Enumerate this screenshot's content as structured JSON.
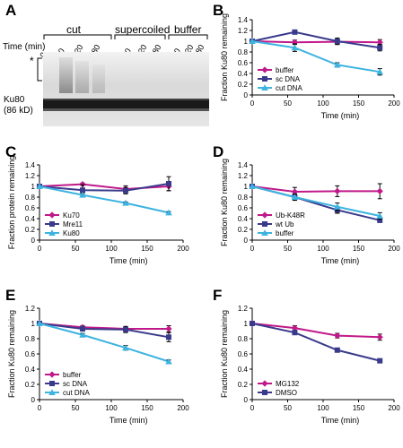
{
  "panels": {
    "A": {
      "letter": "A",
      "groups": [
        "cut",
        "supercoiled",
        "buffer"
      ],
      "time_label": "Time (min)",
      "lanes": [
        "0",
        "60",
        "120",
        "180",
        "0",
        "60",
        "120",
        "180",
        "0",
        "60",
        "120",
        "180"
      ],
      "star": "*",
      "ku80_label": "Ku80",
      "kd_label": "(86 kD)"
    }
  },
  "chart_data": [
    {
      "panel": "B",
      "type": "line",
      "xlabel": "Time (min)",
      "ylabel": "Fraction Ku80 remaining",
      "xlim": [
        0,
        200
      ],
      "ylim": [
        0,
        1.4
      ],
      "xticks": [
        0,
        50,
        100,
        150,
        200
      ],
      "yticks": [
        0,
        0.2,
        0.4,
        0.6,
        0.8,
        1,
        1.2,
        1.4
      ],
      "ytick_labels": [
        "0",
        "0.2",
        "0.4",
        "0.6",
        "0.8",
        "1",
        "1.2",
        "1.4"
      ],
      "legend_position": "bottom-left",
      "x": [
        0,
        60,
        120,
        180
      ],
      "series": [
        {
          "name": "buffer",
          "color": "#c0198a",
          "marker": "diamond",
          "values": [
            1.0,
            0.98,
            0.99,
            0.98
          ],
          "err": [
            0,
            0.04,
            0.05,
            0.05
          ]
        },
        {
          "name": "sc DNA",
          "color": "#3a3a8c",
          "marker": "square",
          "values": [
            1.0,
            1.17,
            1.0,
            0.88
          ],
          "err": [
            0,
            0.03,
            0.06,
            0.06
          ]
        },
        {
          "name": "cut DNA",
          "color": "#3db3e0",
          "marker": "triangle",
          "values": [
            1.0,
            0.88,
            0.56,
            0.43
          ],
          "err": [
            0,
            0.07,
            0.04,
            0.06
          ]
        }
      ]
    },
    {
      "panel": "C",
      "type": "line",
      "xlabel": "Time (min)",
      "ylabel": "Fraction protein remaining",
      "xlim": [
        0,
        200
      ],
      "ylim": [
        0,
        1.4
      ],
      "xticks": [
        0,
        50,
        100,
        150,
        200
      ],
      "yticks": [
        0,
        0.2,
        0.4,
        0.6,
        0.8,
        1,
        1.2,
        1.4
      ],
      "ytick_labels": [
        "0",
        "0.2",
        "0.4",
        "0.6",
        "0.8",
        "1",
        "1.2",
        "1.4"
      ],
      "legend_position": "bottom-left",
      "x": [
        0,
        60,
        120,
        180
      ],
      "series": [
        {
          "name": "Ku70",
          "color": "#c0198a",
          "marker": "diamond",
          "values": [
            1.0,
            1.04,
            0.95,
            1.0
          ],
          "err": [
            0,
            0.02,
            0.06,
            0.08
          ]
        },
        {
          "name": "Mre11",
          "color": "#3a3a8c",
          "marker": "square",
          "values": [
            1.0,
            0.93,
            0.92,
            1.05
          ],
          "err": [
            0,
            0.1,
            0.06,
            0.13
          ]
        },
        {
          "name": "Ku80",
          "color": "#3db3e0",
          "marker": "triangle",
          "values": [
            1.0,
            0.84,
            0.69,
            0.51
          ],
          "err": [
            0,
            0.03,
            0.02,
            0.02
          ]
        }
      ]
    },
    {
      "panel": "D",
      "type": "line",
      "xlabel": "Time (min)",
      "ylabel": "Fraction Ku80 remaining",
      "xlim": [
        0,
        200
      ],
      "ylim": [
        0,
        1.4
      ],
      "xticks": [
        0,
        50,
        100,
        150,
        200
      ],
      "yticks": [
        0,
        0.2,
        0.4,
        0.6,
        0.8,
        1,
        1.2,
        1.4
      ],
      "ytick_labels": [
        "0",
        "0.2",
        "0.4",
        "0.6",
        "0.8",
        "1",
        "1.2",
        "1.4"
      ],
      "legend_position": "bottom-left",
      "x": [
        0,
        60,
        120,
        180
      ],
      "series": [
        {
          "name": "Ub-K48R",
          "color": "#c0198a",
          "marker": "diamond",
          "values": [
            1.0,
            0.9,
            0.91,
            0.91
          ],
          "err": [
            0,
            0.08,
            0.1,
            0.14
          ]
        },
        {
          "name": "wt Ub",
          "color": "#3a3a8c",
          "marker": "square",
          "values": [
            1.0,
            0.8,
            0.56,
            0.37
          ],
          "err": [
            0,
            0.05,
            0.06,
            0.04
          ]
        },
        {
          "name": "buffer",
          "color": "#3db3e0",
          "marker": "triangle",
          "values": [
            1.0,
            0.8,
            0.62,
            0.45
          ],
          "err": [
            0,
            0.06,
            0.07,
            0.06
          ]
        }
      ]
    },
    {
      "panel": "E",
      "type": "line",
      "xlabel": "Time (min)",
      "ylabel": "Fraction Ku80 remaining",
      "xlim": [
        0,
        200
      ],
      "ylim": [
        0,
        1.2
      ],
      "xticks": [
        0,
        50,
        100,
        150,
        200
      ],
      "yticks": [
        0,
        0.2,
        0.4,
        0.6,
        0.8,
        1,
        1.2
      ],
      "ytick_labels": [
        "0",
        "0.2",
        "0.4",
        "0.6",
        "0.8",
        "1",
        "1.2"
      ],
      "legend_position": "bottom-left",
      "x": [
        0,
        60,
        120,
        180
      ],
      "series": [
        {
          "name": "buffer",
          "color": "#c0198a",
          "marker": "diamond",
          "values": [
            1.0,
            0.95,
            0.93,
            0.93
          ],
          "err": [
            0,
            0.02,
            0.03,
            0.04
          ]
        },
        {
          "name": "sc DNA",
          "color": "#3a3a8c",
          "marker": "square",
          "values": [
            1.0,
            0.93,
            0.92,
            0.82
          ],
          "err": [
            0,
            0.03,
            0.04,
            0.06
          ]
        },
        {
          "name": "cut DNA",
          "color": "#3db3e0",
          "marker": "triangle",
          "values": [
            1.0,
            0.85,
            0.68,
            0.5
          ],
          "err": [
            0,
            0.02,
            0.03,
            0.02
          ]
        }
      ]
    },
    {
      "panel": "F",
      "type": "line",
      "xlabel": "Time (min)",
      "ylabel": "Fraction Ku80 remaining",
      "xlim": [
        0,
        200
      ],
      "ylim": [
        0,
        1.2
      ],
      "xticks": [
        0,
        50,
        100,
        150,
        200
      ],
      "yticks": [
        0,
        0.2,
        0.4,
        0.6,
        0.8,
        1,
        1.2
      ],
      "ytick_labels": [
        "0",
        "0.2",
        "0.4",
        "0.6",
        "0.8",
        "1",
        "1.2"
      ],
      "legend_position": "bottom-left",
      "x": [
        0,
        60,
        120,
        180
      ],
      "series": [
        {
          "name": "MG132",
          "color": "#c0198a",
          "marker": "diamond",
          "values": [
            1.0,
            0.94,
            0.84,
            0.82
          ],
          "err": [
            0,
            0.03,
            0.03,
            0.04
          ]
        },
        {
          "name": "DMSO",
          "color": "#3a3a8c",
          "marker": "square",
          "values": [
            1.0,
            0.88,
            0.65,
            0.51
          ],
          "err": [
            0,
            0.02,
            0.02,
            0.02
          ]
        }
      ]
    }
  ]
}
